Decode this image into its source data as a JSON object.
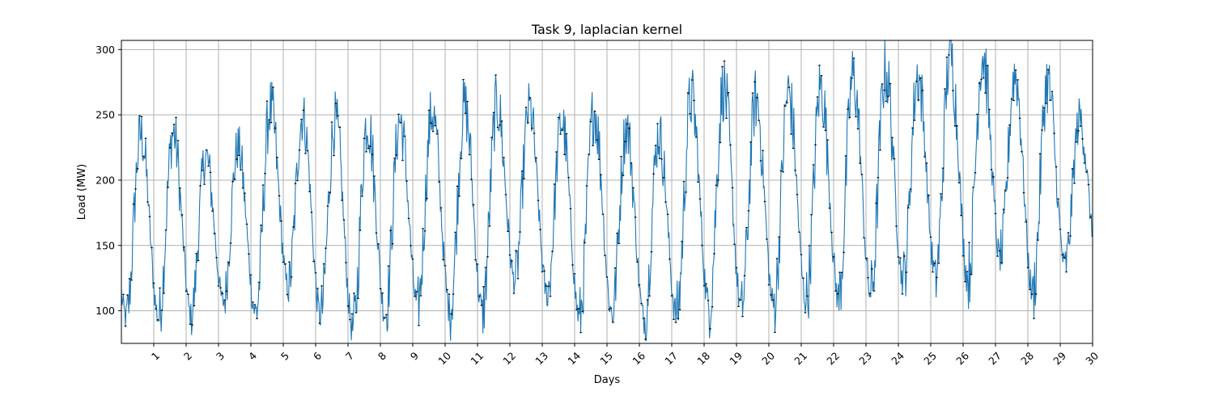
{
  "chart_data": {
    "type": "line",
    "title": "Task 9, laplacian kernel",
    "xlabel": "Days",
    "ylabel": "Load (MW)",
    "xlim": [
      0,
      30
    ],
    "ylim": [
      75,
      307
    ],
    "xticks": [
      1,
      2,
      3,
      4,
      5,
      6,
      7,
      8,
      9,
      10,
      11,
      12,
      13,
      14,
      15,
      16,
      17,
      18,
      19,
      20,
      21,
      22,
      23,
      24,
      25,
      26,
      27,
      28,
      29,
      30
    ],
    "xtick_labels": [
      "1",
      "2",
      "3",
      "4",
      "5",
      "6",
      "7",
      "8",
      "9",
      "10",
      "11",
      "12",
      "13",
      "14",
      "15",
      "16",
      "17",
      "18",
      "19",
      "20",
      "21",
      "22",
      "23",
      "24",
      "25",
      "26",
      "27",
      "28",
      "29",
      "30"
    ],
    "yticks": [
      100,
      150,
      200,
      250,
      300
    ],
    "ytick_labels": [
      "100",
      "150",
      "200",
      "250",
      "300"
    ],
    "grid": true,
    "colors": {
      "series": "#1f77b4",
      "markers": "#000000",
      "predicted": "#2ca02c"
    },
    "series": [
      {
        "x_unit": "days",
        "daily_min": [
          95,
          95,
          97,
          107,
          99,
          118,
          96,
          86,
          98,
          104,
          101,
          100,
          123,
          113,
          95,
          99,
          93,
          97,
          104,
          102,
          104,
          108,
          111,
          113,
          124,
          127,
          125,
          140,
          114,
          135
        ],
        "daily_peak": [
          235,
          236,
          218,
          225,
          255,
          249,
          245,
          246,
          246,
          252,
          256,
          258,
          255,
          245,
          254,
          240,
          235,
          263,
          271,
          262,
          267,
          272,
          279,
          284,
          280,
          296,
          296,
          281,
          275,
          247
        ],
        "peak_time_of_day": 0.6,
        "trough_time_of_day": 0.15
      }
    ]
  }
}
